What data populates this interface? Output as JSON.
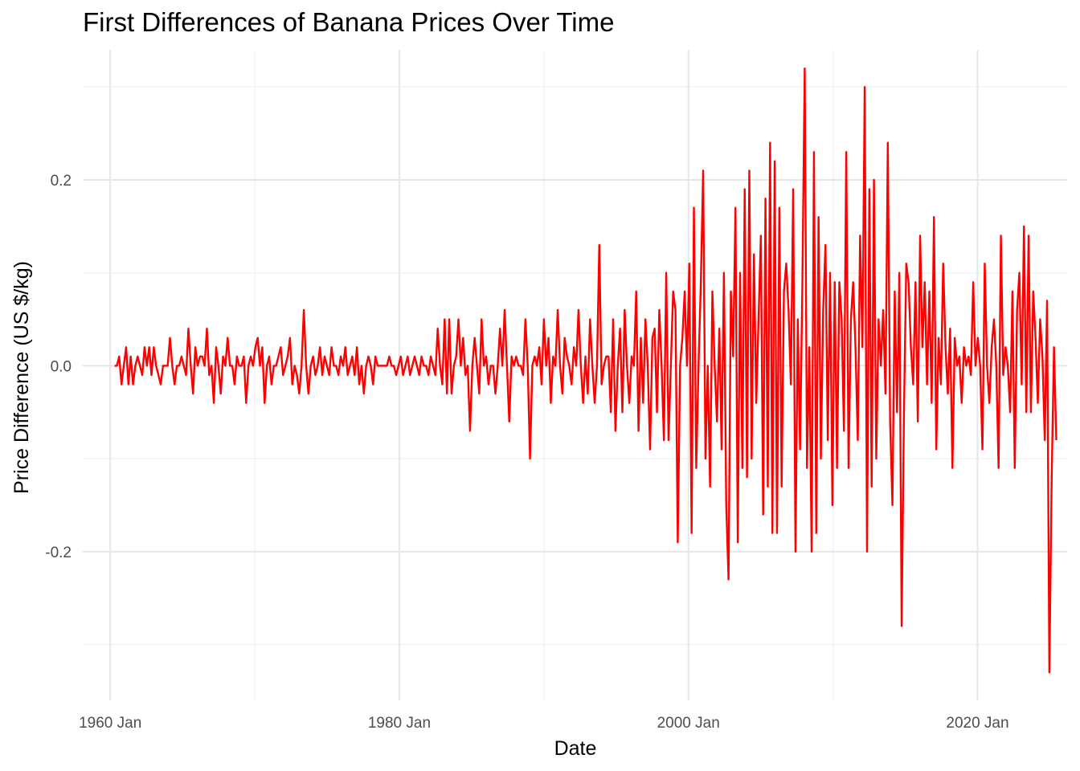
{
  "chart_data": {
    "type": "line",
    "title": "First Differences of Banana Prices Over Time",
    "xlabel": "Date",
    "ylabel": "Price Difference (US $/kg)",
    "x_start": "1960 Jan",
    "x_end": "2025 Jan",
    "x_ticks": [
      {
        "value": 1960,
        "label": "1960 Jan"
      },
      {
        "value": 1980,
        "label": "1980 Jan"
      },
      {
        "value": 2000,
        "label": "2000 Jan"
      },
      {
        "value": 2020,
        "label": "2020 Jan"
      }
    ],
    "x_minor_ticks": [
      1970,
      1990,
      2010
    ],
    "xlim": [
      1958.1,
      2026.2
    ],
    "y_ticks": [
      {
        "value": -0.2,
        "label": "-0.2"
      },
      {
        "value": 0.0,
        "label": "0.0"
      },
      {
        "value": 0.2,
        "label": "0.2"
      }
    ],
    "y_minor_ticks": [
      -0.3,
      -0.1,
      0.1,
      0.3
    ],
    "ylim": [
      -0.36,
      0.34
    ],
    "grid": true,
    "legend": "none",
    "color": "#ff0000",
    "series": [
      {
        "values": [
          0,
          0,
          0.01,
          -0.02,
          0,
          0.02,
          -0.02,
          0.01,
          -0.02,
          0,
          0.01,
          0,
          -0.01,
          0.02,
          0,
          0.02,
          -0.01,
          0.02,
          0,
          -0.01,
          -0.02,
          0,
          0,
          0,
          0.03,
          0,
          -0.02,
          0,
          0,
          0.01,
          0,
          -0.01,
          0.04,
          0,
          -0.03,
          0.02,
          0,
          0.01,
          0.01,
          0,
          0.04,
          -0.01,
          0,
          -0.04,
          0.02,
          0,
          -0.03,
          0.01,
          0,
          0.03,
          0,
          0,
          -0.02,
          0.01,
          0,
          0,
          0.01,
          -0.04,
          0,
          0.01,
          0,
          0.02,
          0.03,
          0,
          0.02,
          -0.04,
          0,
          0.01,
          -0.02,
          0,
          0,
          0.01,
          0.02,
          -0.01,
          0,
          0.01,
          0.03,
          -0.02,
          0,
          -0.01,
          -0.03,
          0,
          0.06,
          0,
          -0.03,
          0,
          0.01,
          -0.01,
          0,
          0.02,
          -0.01,
          0.01,
          0,
          -0.01,
          0.02,
          0,
          0,
          -0.01,
          0.01,
          0,
          0.02,
          -0.01,
          0,
          0.01,
          -0.01,
          0.02,
          -0.02,
          0,
          -0.03,
          0,
          0.01,
          0,
          -0.02,
          0.01,
          0,
          0,
          0,
          0,
          0,
          0.01,
          0,
          0,
          -0.01,
          0,
          0.01,
          -0.01,
          0,
          0.01,
          -0.01,
          0,
          0.01,
          0,
          -0.01,
          0.01,
          0,
          0,
          -0.01,
          0.01,
          0,
          -0.01,
          0.04,
          0,
          -0.02,
          0.05,
          -0.03,
          0.05,
          -0.03,
          0,
          0.01,
          0.05,
          0,
          0.03,
          -0.01,
          0,
          -0.07,
          0,
          0.03,
          0,
          -0.03,
          0.05,
          0,
          0.01,
          -0.02,
          0,
          0,
          -0.03,
          0,
          0.04,
          0,
          0.06,
          0,
          -0.06,
          0.01,
          0,
          0.01,
          0,
          0,
          -0.01,
          0.05,
          0,
          -0.1,
          0,
          0.01,
          0,
          0.02,
          -0.02,
          0.05,
          0,
          0.03,
          -0.04,
          0.01,
          0,
          0.06,
          0,
          -0.03,
          0.03,
          0.01,
          0,
          -0.02,
          0.02,
          0,
          0.06,
          0,
          -0.04,
          0.01,
          -0.03,
          0.05,
          0,
          -0.04,
          0,
          0.13,
          -0.02,
          0,
          0.01,
          0.01,
          -0.05,
          0.05,
          -0.07,
          0,
          0.04,
          -0.05,
          0.06,
          0,
          -0.04,
          0.01,
          0,
          0.08,
          -0.07,
          0.03,
          -0.04,
          0.05,
          0,
          -0.09,
          0.03,
          0.04,
          -0.05,
          0.06,
          0,
          -0.08,
          0.1,
          -0.08,
          0,
          0.08,
          0.06,
          -0.19,
          0,
          0.03,
          0.08,
          0,
          0.11,
          -0.18,
          0.17,
          -0.11,
          0,
          0.09,
          0.21,
          -0.1,
          0,
          -0.13,
          0.08,
          0,
          -0.06,
          0.04,
          -0.09,
          0.1,
          -0.15,
          -0.23,
          0.08,
          0.01,
          0.17,
          -0.19,
          0.1,
          -0.11,
          0.19,
          -0.12,
          0.21,
          -0.1,
          0.12,
          -0.04,
          0.05,
          0.14,
          -0.16,
          0.18,
          -0.13,
          0.24,
          -0.18,
          0.22,
          -0.18,
          0.17,
          -0.13,
          0.08,
          0.11,
          0.06,
          -0.02,
          0.19,
          -0.2,
          0.05,
          -0.09,
          0.09,
          0.32,
          -0.11,
          0.02,
          -0.2,
          0.23,
          -0.18,
          0.16,
          -0.1,
          0.06,
          0.13,
          -0.08,
          0.1,
          -0.15,
          0.09,
          -0.11,
          0.09,
          0.05,
          -0.07,
          0.23,
          -0.11,
          0.05,
          0.09,
          0.02,
          -0.08,
          0.14,
          0.02,
          0.3,
          -0.2,
          0.19,
          -0.13,
          0.2,
          -0.1,
          0.05,
          0,
          0.06,
          -0.03,
          0.24,
          -0.06,
          -0.15,
          0.08,
          -0.05,
          0.1,
          -0.28,
          -0.05,
          0.11,
          0.09,
          0.02,
          -0.02,
          0.09,
          -0.06,
          0.14,
          0.02,
          0.09,
          -0.02,
          0.08,
          -0.04,
          0.16,
          -0.09,
          0.03,
          -0.02,
          0.11,
          0.02,
          -0.03,
          0.04,
          -0.11,
          0.03,
          0,
          0.01,
          -0.04,
          0.02,
          0,
          0.01,
          -0.01,
          0.09,
          0,
          0.03,
          0,
          -0.09,
          0.11,
          0,
          -0.04,
          0.02,
          0.05,
          0,
          -0.11,
          0.14,
          -0.01,
          0.02,
          0,
          -0.05,
          0.08,
          -0.11,
          0.06,
          0.1,
          -0.02,
          0.15,
          -0.05,
          0.14,
          -0.05,
          0.08,
          0.03,
          -0.04,
          0.05,
          0.01,
          -0.08,
          0.07,
          -0.33,
          -0.12,
          0.02,
          -0.08
        ]
      }
    ]
  }
}
